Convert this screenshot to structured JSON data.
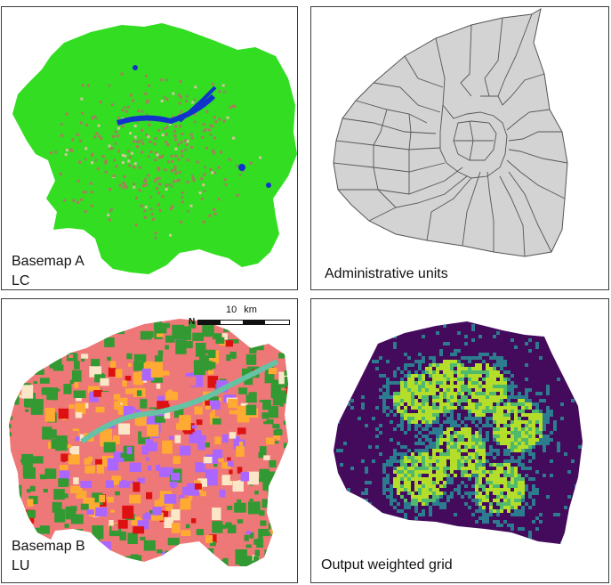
{
  "panels": {
    "lc": {
      "caption_line1": "Basemap A",
      "caption_line2": "LC"
    },
    "admin": {
      "caption": "Administrative units"
    },
    "lu": {
      "caption_line1": "Basemap B",
      "caption_line2": "LU",
      "scale_value": "10",
      "scale_unit": "km",
      "north_symbol": "N"
    },
    "grid": {
      "caption": "Output weighted grid"
    }
  },
  "colors": {
    "lc_green": "#33dd22",
    "lc_urban": "#b07860",
    "lc_water": "#1133cc",
    "admin_fill": "#d3d3d3",
    "admin_line": "#555555",
    "lu_green": "#339933",
    "lu_orange": "#ffaa33",
    "lu_red": "#dd1111",
    "lu_purple": "#aa66ff",
    "lu_pink": "#ee7777",
    "lu_beige": "#fbe6c8",
    "lu_teal": "#66c2a5",
    "grid_low": "#440a5c",
    "grid_mid": "#2c7b8e",
    "grid_high": "#b5de2b"
  }
}
